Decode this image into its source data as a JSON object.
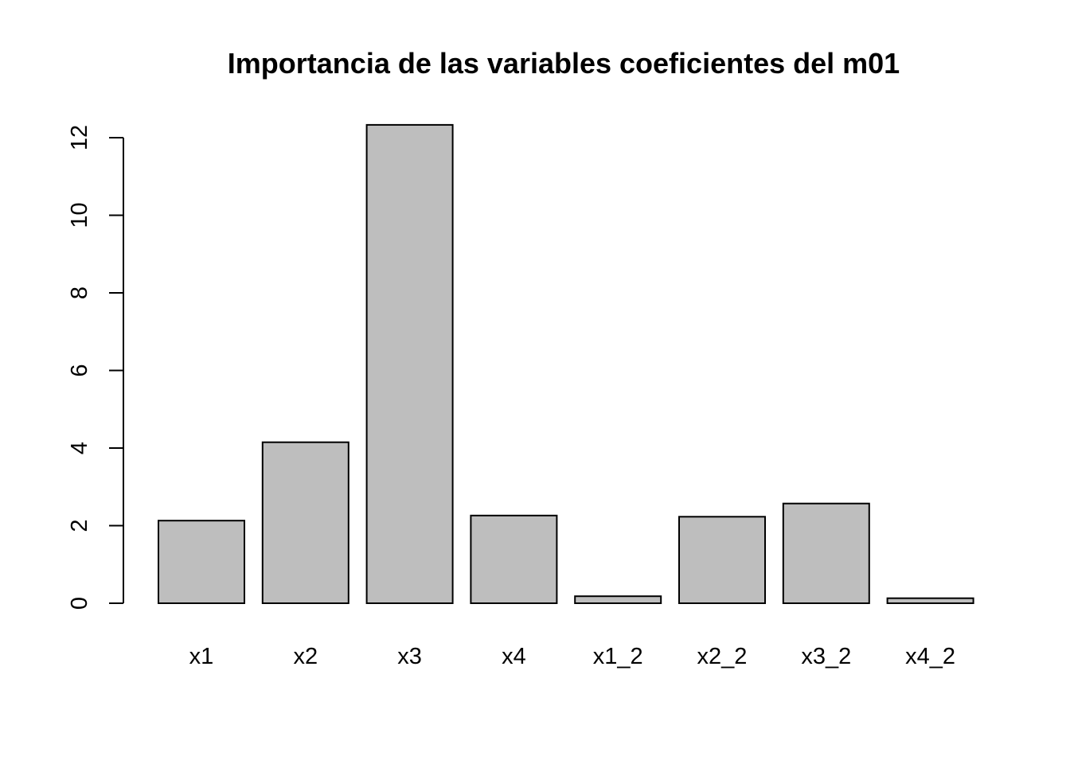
{
  "chart_data": {
    "type": "bar",
    "title": "Importancia de las variables coeficientes del m01",
    "xlabel": "",
    "ylabel": "",
    "categories": [
      "x1",
      "x2",
      "x3",
      "x4",
      "x1_2",
      "x2_2",
      "x3_2",
      "x4_2"
    ],
    "values": [
      2.13,
      4.15,
      12.33,
      2.26,
      0.18,
      2.23,
      2.57,
      0.13
    ],
    "ylim": [
      0,
      12
    ],
    "y_ticks": [
      0,
      2,
      4,
      6,
      8,
      10,
      12
    ],
    "y_tick_labels": [
      "0",
      "2",
      "4",
      "6",
      "8",
      "10",
      "12"
    ],
    "grid": false,
    "legend": "none",
    "colors": {
      "bar_fill": "#bebebe",
      "bar_stroke": "#000000",
      "background": "#ffffff"
    }
  }
}
